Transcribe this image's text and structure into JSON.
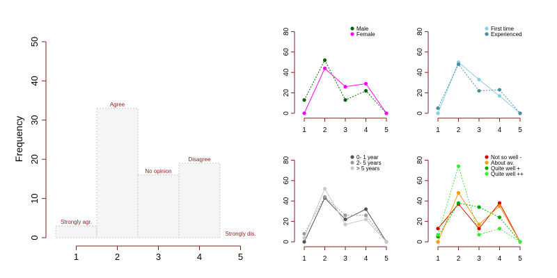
{
  "chart_data": [
    {
      "id": "main",
      "type": "bar",
      "ylabel": "Frequency",
      "xlabel": "",
      "categories": [
        "1",
        "2",
        "3",
        "4",
        "5"
      ],
      "values": [
        3,
        33,
        16,
        19,
        0
      ],
      "bar_labels": [
        "Strongly agr.",
        "Agree",
        "No opinion",
        "Disagree",
        "Strongly dis."
      ],
      "ylim": [
        0,
        50
      ],
      "yticks": [
        0,
        10,
        20,
        30,
        40,
        50
      ],
      "xticks": [
        1,
        2,
        3,
        4,
        5
      ],
      "bar_fill": "#f5f5f5",
      "bar_stroke": "#c8c8c8",
      "label_color": "#8b1a1a",
      "axis_color": "#8b1a1a"
    },
    {
      "id": "gender",
      "type": "line",
      "x": [
        1,
        2,
        3,
        4,
        5
      ],
      "ylim": [
        0,
        80
      ],
      "yticks": [
        0,
        20,
        40,
        60,
        80
      ],
      "xticks": [
        1,
        2,
        3,
        4,
        5
      ],
      "legend": "top-right",
      "series": [
        {
          "name": "Male",
          "values": [
            13,
            52,
            13,
            22,
            0
          ],
          "color": "#006400",
          "dash": "dotted"
        },
        {
          "name": "Female",
          "values": [
            0,
            44,
            26,
            29,
            0
          ],
          "color": "#ff00ff",
          "dash": "solid"
        }
      ]
    },
    {
      "id": "experience",
      "type": "line",
      "x": [
        1,
        2,
        3,
        4,
        5
      ],
      "ylim": [
        0,
        80
      ],
      "yticks": [
        0,
        20,
        40,
        60,
        80
      ],
      "xticks": [
        1,
        2,
        3,
        4,
        5
      ],
      "legend": "top-right",
      "series": [
        {
          "name": "First time",
          "values": [
            0,
            50,
            33,
            17,
            0
          ],
          "color": "#87ceeb",
          "dash": "solid"
        },
        {
          "name": "Experienced",
          "values": [
            5,
            48,
            22,
            23,
            0
          ],
          "color": "#4a8fa0",
          "dash": "dotted"
        }
      ]
    },
    {
      "id": "years",
      "type": "line",
      "x": [
        1,
        2,
        3,
        4,
        5
      ],
      "ylim": [
        0,
        80
      ],
      "yticks": [
        0,
        20,
        40,
        60,
        80
      ],
      "xticks": [
        1,
        2,
        3,
        4,
        5
      ],
      "legend": "top-right",
      "series": [
        {
          "name": "0- 1 year",
          "values": [
            0,
            43,
            22,
            32,
            0
          ],
          "color": "#555555",
          "dash": "solid"
        },
        {
          "name": "2- 5 years",
          "values": [
            8,
            44,
            26,
            26,
            0
          ],
          "color": "#999999",
          "dash": "dotted"
        },
        {
          "name": "> 5 years",
          "values": [
            4,
            52,
            17,
            22,
            0
          ],
          "color": "#c8c8c8",
          "dash": "solid"
        }
      ]
    },
    {
      "id": "proficiency",
      "type": "line",
      "x": [
        1,
        2,
        3,
        4,
        5
      ],
      "ylim": [
        0,
        80
      ],
      "yticks": [
        0,
        20,
        40,
        60,
        80
      ],
      "xticks": [
        1,
        2,
        3,
        4,
        5
      ],
      "legend": "top-right",
      "series": [
        {
          "name": "Not so well -",
          "values": [
            13,
            37,
            13,
            38,
            0
          ],
          "color": "#dd0000",
          "dash": "solid"
        },
        {
          "name": "About av.",
          "values": [
            0,
            48,
            17,
            35,
            0
          ],
          "color": "#ff9900",
          "dash": "solid"
        },
        {
          "name": "Quite well +",
          "values": [
            5,
            38,
            34,
            24,
            0
          ],
          "color": "#00aa00",
          "dash": "dotted"
        },
        {
          "name": "Quite well ++",
          "values": [
            7,
            74,
            7,
            13,
            0
          ],
          "color": "#33ee33",
          "dash": "dotted"
        }
      ]
    }
  ]
}
